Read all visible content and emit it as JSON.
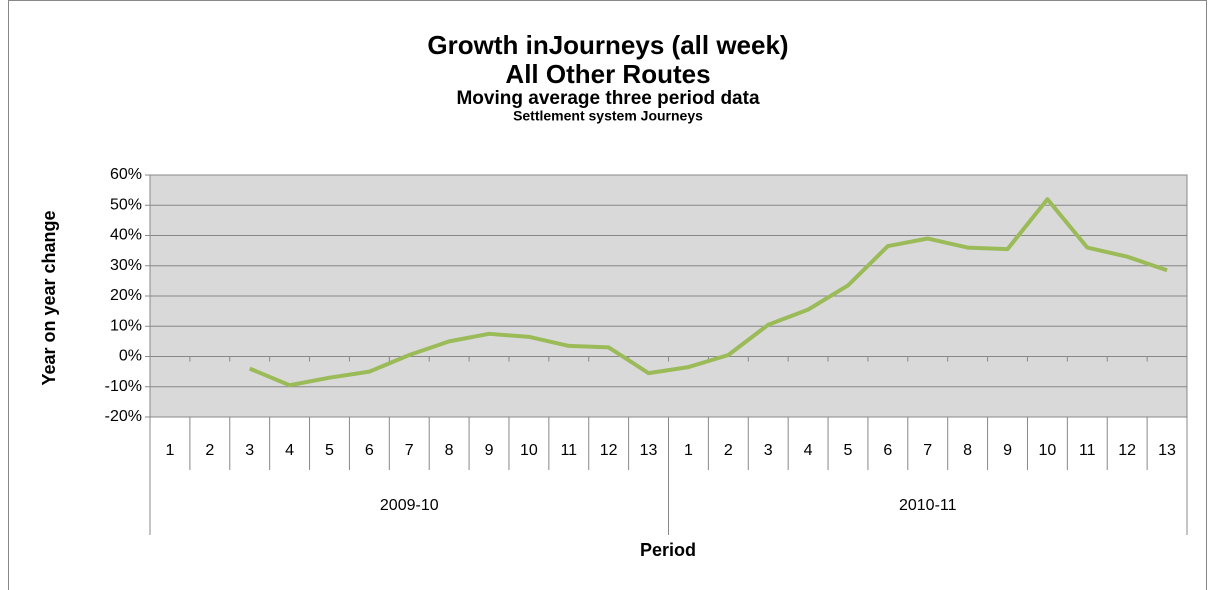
{
  "chart_data": {
    "type": "line",
    "title": "Growth inJourneys (all week)",
    "subtitle": "All Other Routes",
    "subtitle2": "Moving average  three  period data",
    "subtitle3": "Settlement system Journeys",
    "y_label": "Year on year change",
    "x_label": "Period",
    "categories": [
      "1",
      "2",
      "3",
      "4",
      "5",
      "6",
      "7",
      "8",
      "9",
      "10",
      "11",
      "12",
      "13",
      "1",
      "2",
      "3",
      "4",
      "5",
      "6",
      "7",
      "8",
      "9",
      "10",
      "11",
      "12",
      "13"
    ],
    "category_groups": [
      {
        "name": "2009-10",
        "count": 13
      },
      {
        "name": "2010-11",
        "count": 13
      }
    ],
    "series": [
      {
        "name": "Growth",
        "color": "#9bbb59",
        "values": [
          null,
          null,
          -4,
          -9.5,
          -7,
          -5,
          0.5,
          5,
          7.5,
          6.5,
          3.5,
          3,
          -5.5,
          -3.5,
          0.5,
          10.5,
          15.5,
          23.5,
          36.5,
          39,
          36,
          35.5,
          52,
          36,
          33,
          28.5
        ]
      }
    ],
    "ylim": [
      -20,
      60
    ],
    "yticks": [
      {
        "value": -20,
        "label": "-20%"
      },
      {
        "value": -10,
        "label": "-10%"
      },
      {
        "value": 0,
        "label": "0%"
      },
      {
        "value": 10,
        "label": "10%"
      },
      {
        "value": 20,
        "label": "20%"
      },
      {
        "value": 30,
        "label": "30%"
      },
      {
        "value": 40,
        "label": "40%"
      },
      {
        "value": 50,
        "label": "50%"
      },
      {
        "value": 60,
        "label": "60%"
      }
    ],
    "grid": true,
    "plot_background": "#d9d9d9"
  }
}
